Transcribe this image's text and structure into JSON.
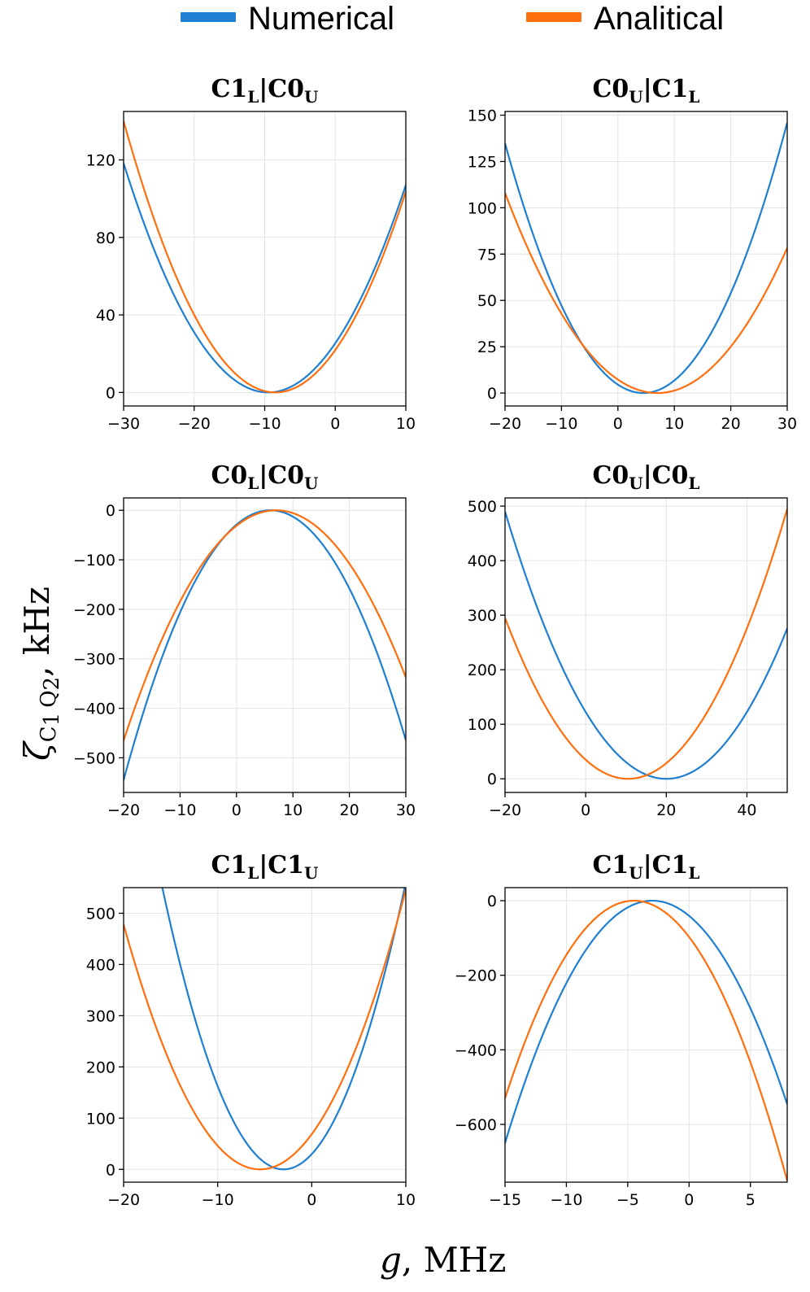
{
  "legend": [
    {
      "label": "Numerical",
      "color": "#1f7fd0"
    },
    {
      "label": "Analitical",
      "color": "#ff6f0e"
    }
  ],
  "xlabel": {
    "main": "g",
    "rest": ", MHz"
  },
  "ylabel": {
    "main": "ζ",
    "sub": "C",
    "sub1": "1",
    "sub2": "Q",
    "sub3": "2",
    "rest": ", kHz"
  },
  "chart_data": [
    {
      "type": "line",
      "title": {
        "a": "C1",
        "aSub": "L",
        "sep": "|",
        "b": "C0",
        "bSub": "U"
      },
      "xlim": [
        -30,
        10
      ],
      "ylim": [
        -7,
        145
      ],
      "xticks": [
        -30,
        -20,
        -10,
        0,
        10
      ],
      "yticks": [
        0,
        40,
        80,
        120
      ],
      "series": [
        {
          "name": "Numerical",
          "vertex": [
            -9.5,
            0
          ],
          "through": [
            10,
            107
          ]
        },
        {
          "name": "Analitical",
          "vertex": [
            -8.5,
            0
          ],
          "through": [
            -30,
            140
          ]
        }
      ]
    },
    {
      "type": "line",
      "title": {
        "a": "C0",
        "aSub": "U",
        "sep": "|",
        "b": "C1",
        "bSub": "L"
      },
      "xlim": [
        -20,
        30
      ],
      "ylim": [
        -7,
        152
      ],
      "xticks": [
        -20,
        -10,
        0,
        10,
        20,
        30
      ],
      "yticks": [
        0,
        25,
        50,
        75,
        100,
        125,
        150
      ],
      "series": [
        {
          "name": "Numerical",
          "vertex": [
            4.5,
            0
          ],
          "through": [
            30,
            146
          ]
        },
        {
          "name": "Analitical",
          "vertex": [
            7,
            0
          ],
          "through": [
            -20,
            108
          ]
        }
      ]
    },
    {
      "type": "line",
      "title": {
        "a": "C0",
        "aSub": "L",
        "sep": "|",
        "b": "C0",
        "bSub": "U"
      },
      "xlim": [
        -20,
        30
      ],
      "ylim": [
        -570,
        25
      ],
      "xticks": [
        -20,
        -10,
        0,
        10,
        20,
        30
      ],
      "yticks": [
        -500,
        -400,
        -300,
        -200,
        -100,
        0
      ],
      "series": [
        {
          "name": "Numerical",
          "vertex": [
            6,
            0
          ],
          "through": [
            -20,
            -545
          ]
        },
        {
          "name": "Analitical",
          "vertex": [
            7,
            0
          ],
          "through": [
            -20,
            -465
          ]
        }
      ]
    },
    {
      "type": "line",
      "title": {
        "a": "C0",
        "aSub": "U",
        "sep": "|",
        "b": "C0",
        "bSub": "L"
      },
      "xlim": [
        -20,
        50
      ],
      "ylim": [
        -25,
        515
      ],
      "xticks": [
        -20,
        0,
        20,
        40
      ],
      "yticks": [
        0,
        100,
        200,
        300,
        400,
        500
      ],
      "series": [
        {
          "name": "Numerical",
          "vertex": [
            20,
            0
          ],
          "through": [
            -20,
            490
          ]
        },
        {
          "name": "Analitical",
          "vertex": [
            10.5,
            0
          ],
          "through": [
            -20,
            295
          ]
        }
      ]
    },
    {
      "type": "line",
      "title": {
        "a": "C1",
        "aSub": "L",
        "sep": "|",
        "b": "C1",
        "bSub": "U"
      },
      "xlim": [
        -20,
        10
      ],
      "ylim": [
        -25,
        550
      ],
      "xticks": [
        -20,
        -10,
        0,
        10
      ],
      "yticks": [
        0,
        100,
        200,
        300,
        400,
        500
      ],
      "series": [
        {
          "name": "Numerical",
          "vertex": [
            -3,
            0
          ],
          "through": [
            10,
            560
          ]
        },
        {
          "name": "Analitical",
          "vertex": [
            -5.5,
            0
          ],
          "through": [
            -20,
            478
          ]
        }
      ]
    },
    {
      "type": "line",
      "title": {
        "a": "C1",
        "aSub": "U",
        "sep": "|",
        "b": "C1",
        "bSub": "L"
      },
      "xlim": [
        -15,
        8
      ],
      "ylim": [
        -755,
        35
      ],
      "xticks": [
        -15,
        -10,
        -5,
        0,
        5
      ],
      "yticks": [
        -600,
        -400,
        -200,
        0
      ],
      "series": [
        {
          "name": "Numerical",
          "vertex": [
            -3,
            0
          ],
          "through": [
            -15,
            -650
          ]
        },
        {
          "name": "Analitical",
          "vertex": [
            -4.5,
            0
          ],
          "through": [
            -15,
            -530
          ]
        }
      ]
    }
  ]
}
